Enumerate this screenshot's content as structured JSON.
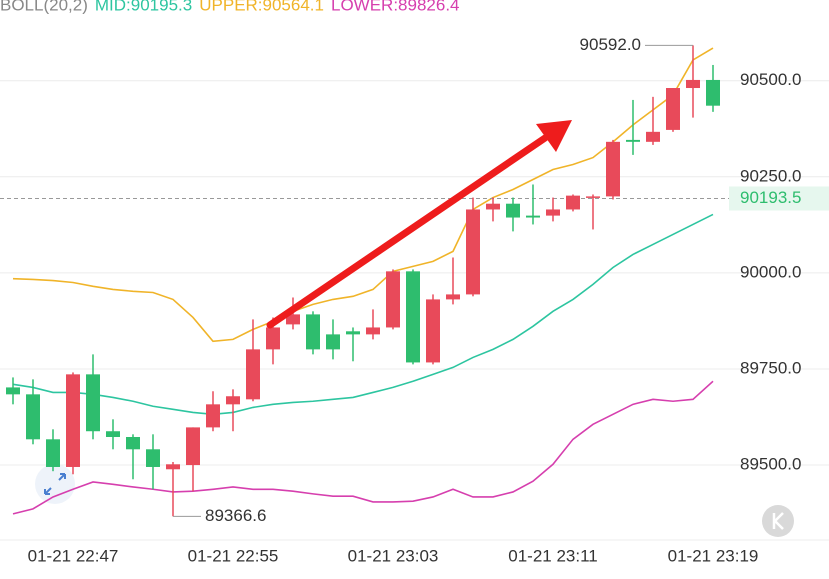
{
  "chart_data": {
    "type": "candlestick",
    "indicator": {
      "name": "BOLL(20,2)",
      "mid": "MID:90195.3",
      "upper": "UPPER:90564.1",
      "lower": "LOWER:89826.4"
    },
    "categories": [
      null,
      null,
      null,
      "01-21 22:47",
      null,
      null,
      null,
      null,
      null,
      null,
      null,
      "01-21 22:55",
      null,
      null,
      null,
      null,
      null,
      null,
      null,
      "01-21 23:03",
      null,
      null,
      null,
      null,
      null,
      null,
      null,
      "01-21 23:11",
      null,
      null,
      null,
      null,
      null,
      null,
      null,
      "01-21 23:19"
    ],
    "open": [
      89702,
      89684,
      89567,
      89495,
      89736,
      89588,
      89573,
      89541,
      89489,
      89500,
      89598,
      89658,
      89671,
      89801,
      89866,
      89892,
      89840,
      89848,
      89840,
      89858,
      90004,
      89767,
      89931,
      89944,
      90165,
      90180,
      90149,
      90149,
      90165,
      90196,
      90199,
      90346,
      90341,
      90372,
      90481,
      90502
    ],
    "high": [
      89728,
      89723,
      89593,
      89741,
      89788,
      89619,
      89580,
      89580,
      89508,
      89598,
      89692,
      89697,
      89879,
      89884,
      89936,
      89900,
      89879,
      89858,
      89905,
      90009,
      90009,
      89944,
      90040,
      90196,
      90196,
      90196,
      90230,
      90196,
      90204,
      90204,
      90346,
      90450,
      90458,
      90481,
      90592.0,
      90541
    ],
    "low": [
      89658,
      89554,
      89484,
      89476,
      89567,
      89541,
      89463,
      89437,
      89366.6,
      89432,
      89588,
      89588,
      89666,
      89762,
      89853,
      89788,
      89775,
      89770,
      89827,
      89853,
      89762,
      89762,
      89918,
      89939,
      90134,
      90108,
      90126,
      90134,
      90160,
      90113,
      90191,
      90307,
      90333,
      90367,
      90404,
      90419
    ],
    "close": [
      89684,
      89567,
      89495,
      89736,
      89588,
      89573,
      89541,
      89495,
      89502,
      89598,
      89658,
      89679,
      89801,
      89858,
      89892,
      89801,
      89801,
      89840,
      89858,
      90004,
      89767,
      89931,
      89944,
      90165,
      90180,
      90144,
      90144,
      90165,
      90201,
      90199,
      90341,
      90341,
      90367,
      90481,
      90502,
      90435
    ],
    "up_color": "#e84a5a",
    "down_color": "#2ebd6e",
    "series": [
      {
        "name": "UPPER",
        "color": "#f0b429",
        "values": [
          89985,
          89983,
          89980,
          89975,
          89965,
          89957,
          89952,
          89949,
          89931,
          89884,
          89822,
          89827,
          89853,
          89874,
          89900,
          89918,
          89931,
          89939,
          89957,
          90004,
          90017,
          90030,
          90056,
          90165,
          90196,
          90217,
          90243,
          90269,
          90282,
          90300,
          90341,
          90385,
          90424,
          90463,
          90554,
          90585
        ]
      },
      {
        "name": "MID",
        "color": "#2dc5a0",
        "values": [
          89710,
          89702,
          89689,
          89689,
          89684,
          89676,
          89666,
          89653,
          89645,
          89637,
          89632,
          89637,
          89650,
          89658,
          89663,
          89666,
          89671,
          89676,
          89689,
          89702,
          89718,
          89736,
          89754,
          89780,
          89801,
          89827,
          89861,
          89900,
          89931,
          89970,
          90014,
          90048,
          90074,
          90100,
          90126,
          90152
        ]
      },
      {
        "name": "LOWER",
        "color": "#d63fae",
        "values": [
          89373,
          89386,
          89417,
          89437,
          89456,
          89450,
          89443,
          89437,
          89430,
          89432,
          89437,
          89443,
          89437,
          89437,
          89432,
          89425,
          89419,
          89419,
          89404,
          89404,
          89406,
          89417,
          89437,
          89417,
          89417,
          89430,
          89458,
          89502,
          89567,
          89606,
          89632,
          89658,
          89671,
          89666,
          89671,
          89718
        ]
      }
    ],
    "ylim": [
      89305,
      90710
    ],
    "yticks": [
      {
        "value": 89500,
        "label": "89500.0"
      },
      {
        "value": 89750,
        "label": "89750.0"
      },
      {
        "value": 90000,
        "label": "90000.0"
      },
      {
        "value": 90250,
        "label": "90250.0"
      },
      {
        "value": 90500,
        "label": "90500.0"
      }
    ],
    "grid": true,
    "max_label": "90592.0",
    "min_label": "89366.6",
    "last_price": {
      "value": 90193.5,
      "label": "90193.5"
    }
  }
}
